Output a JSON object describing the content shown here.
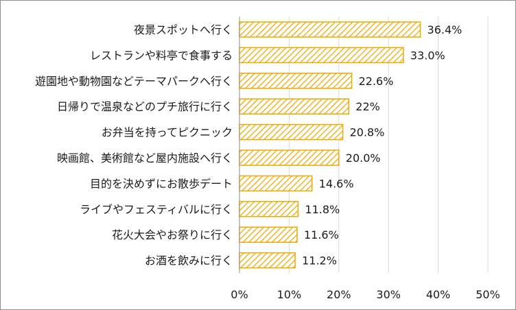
{
  "chart_data": {
    "type": "bar",
    "orientation": "horizontal",
    "title": "",
    "xlabel": "",
    "ylabel": "",
    "categories": [
      "夜景スポットへ行く",
      "レストランや料亭で食事する",
      "遊園地や動物園などテーマパークへ行く",
      "日帰りで温泉などのプチ旅行に行く",
      "お弁当を持ってピクニック",
      "映画館、美術館など屋内施設へ行く",
      "目的を決めずにお散歩デート",
      "ライブやフェスティバルに行く",
      "花火大会やお祭りに行く",
      "お酒を飲みに行く"
    ],
    "values": [
      36.4,
      33.0,
      22.6,
      22,
      20.8,
      20.0,
      14.6,
      11.8,
      11.6,
      11.2
    ],
    "value_labels": [
      "36.4%",
      "33.0%",
      "22.6%",
      "22%",
      "20.8%",
      "20.0%",
      "14.6%",
      "11.8%",
      "11.6%",
      "11.2%"
    ],
    "xlim": [
      0,
      50
    ],
    "ticks": [
      0,
      10,
      20,
      30,
      40,
      50
    ],
    "tick_labels": [
      "0%",
      "10%",
      "20%",
      "30%",
      "40%",
      "50%"
    ],
    "grid": true,
    "bar_fill": "diagonal-hatch",
    "colors": {
      "bar_stroke": "#F0A800",
      "hatch": "#F0A800",
      "grid": "#d9d9d9",
      "axis": "#8c8c8c"
    }
  }
}
